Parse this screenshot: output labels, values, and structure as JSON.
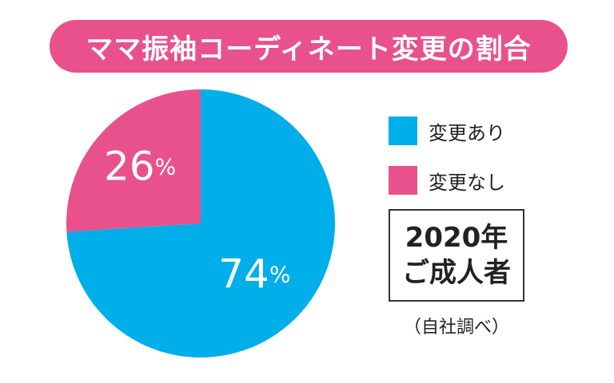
{
  "title": "ママ振袖コーディネート変更の割合",
  "colors": {
    "changed": "#00AEEA",
    "unchanged": "#E8518C",
    "title_bg": "#E8518C"
  },
  "chart_data": {
    "type": "pie",
    "title": "ママ振袖コーディネート変更の割合",
    "slices": [
      {
        "label": "変更あり",
        "value": 74,
        "display": "74%",
        "color": "#00AEEA"
      },
      {
        "label": "変更なし",
        "value": 26,
        "display": "26%",
        "color": "#E8518C"
      }
    ],
    "legend_position": "right"
  },
  "note": {
    "line1": "2020年",
    "line2": "ご成人者"
  },
  "source": "（自社調べ）"
}
